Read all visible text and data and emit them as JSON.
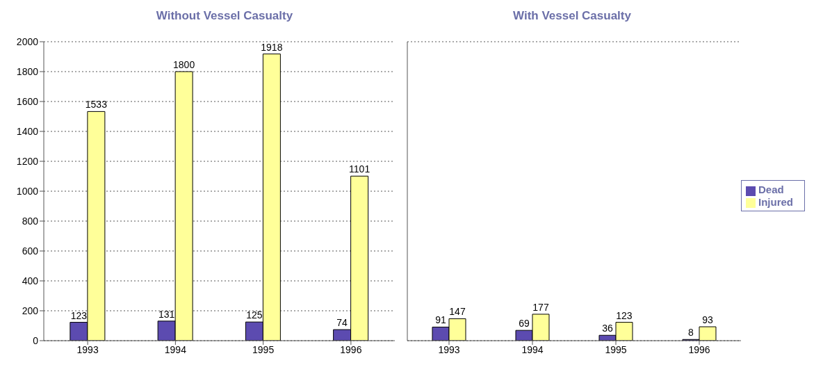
{
  "chart_data": [
    {
      "type": "bar",
      "title": "Without  Vessel Casualty",
      "categories": [
        "1993",
        "1994",
        "1995",
        "1996"
      ],
      "series": [
        {
          "color": "#5c4bb0",
          "values": [
            123,
            131,
            125,
            74
          ]
        },
        {
          "color": "#ffff99",
          "values": [
            1533,
            1800,
            1918,
            1101
          ]
        }
      ],
      "ylim": [
        0,
        2000
      ],
      "yticks": [
        0,
        200,
        400,
        600,
        800,
        1000,
        1200,
        1400,
        1600,
        1800,
        2000
      ],
      "grid": "y",
      "data_labels": true
    },
    {
      "type": "bar",
      "title": "With Vessel Casualty",
      "categories": [
        "1993",
        "1994",
        "1995",
        "1996"
      ],
      "series": [
        {
          "name": "Dead",
          "color": "#5c4bb0",
          "values": [
            91,
            69,
            36,
            8
          ]
        },
        {
          "name": "Injured",
          "color": "#ffff99",
          "values": [
            147,
            177,
            123,
            93
          ]
        }
      ],
      "ylim": [
        0,
        2000
      ],
      "yticks": [
        0,
        200,
        400,
        600,
        800,
        1000,
        1200,
        1400,
        1600,
        1800,
        2000
      ],
      "grid": "y",
      "data_labels": true,
      "tick_labels": "x",
      "legend": "right"
    }
  ]
}
